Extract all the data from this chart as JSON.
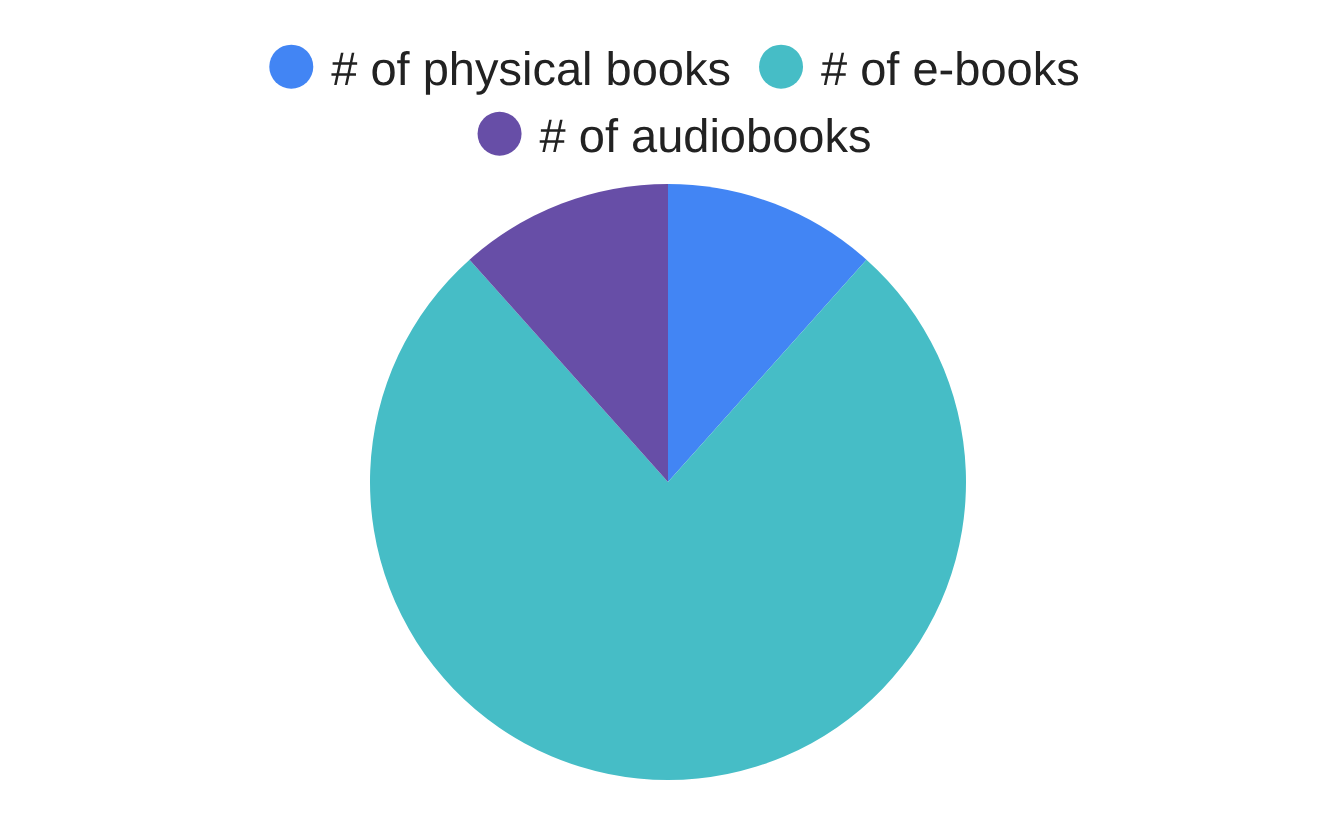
{
  "chart_data": {
    "type": "pie",
    "categories": [
      "# of physical books",
      "# of e-books",
      "# of audiobooks"
    ],
    "values": [
      11.6,
      76.8,
      11.6
    ],
    "colors": [
      "#4285f4",
      "#46bdc6",
      "#674ea7"
    ],
    "legend": "top"
  }
}
